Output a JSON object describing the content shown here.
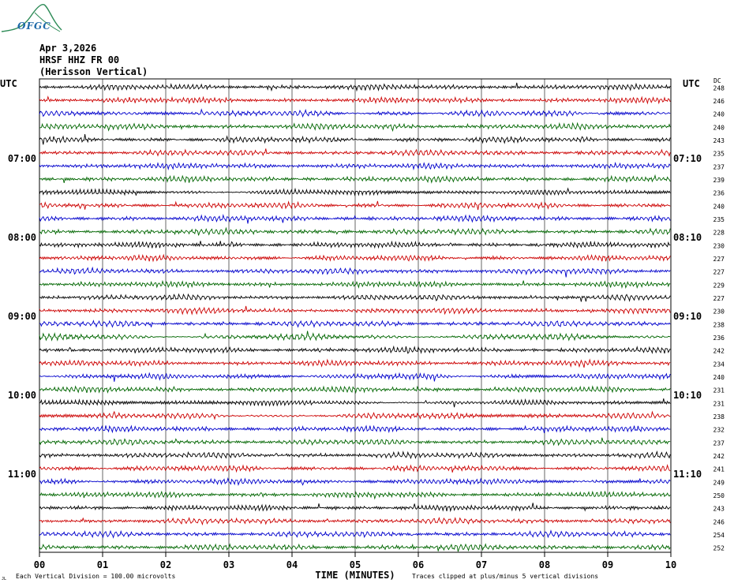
{
  "header": {
    "logo": "OFGC",
    "date": "Apr 3,2026",
    "station": "HRSF HHZ FR 00",
    "location": "(Herisson Vertical)"
  },
  "axes": {
    "left_title": "UTC",
    "right_title": "UTC",
    "right_corner": "DC",
    "xlabel": "TIME (MINUTES)",
    "x_ticks": [
      "00",
      "01",
      "02",
      "03",
      "04",
      "05",
      "06",
      "07",
      "08",
      "09",
      "10"
    ]
  },
  "footer": {
    "left_mark": "JL",
    "scale_note": "Each Vertical Division =  100.00 microvolts",
    "clip_note": "Traces clipped at plus/minus 5 vertical divisions"
  },
  "colors": {
    "trace_cycle": [
      "#000000",
      "#cc0000",
      "#0000cc",
      "#006600"
    ],
    "grid": "#000000",
    "logo": "#2e8b57"
  },
  "chart_data": {
    "type": "line",
    "title": "",
    "xlabel": "TIME (MINUTES)",
    "ylabel": "",
    "xlim": [
      0,
      10
    ],
    "rows_count": 36,
    "left_hour_labels": [
      {
        "row": 6,
        "label": "07:00"
      },
      {
        "row": 12,
        "label": "08:00"
      },
      {
        "row": 18,
        "label": "09:00"
      },
      {
        "row": 24,
        "label": "10:00"
      },
      {
        "row": 30,
        "label": "11:00"
      }
    ],
    "right_hour_labels": [
      {
        "row": 6,
        "label": "07:10"
      },
      {
        "row": 12,
        "label": "08:10"
      },
      {
        "row": 18,
        "label": "09:10"
      },
      {
        "row": 24,
        "label": "10:10"
      },
      {
        "row": 30,
        "label": "11:10"
      }
    ],
    "dc_offsets": [
      248,
      246,
      240,
      240,
      243,
      235,
      237,
      239,
      236,
      240,
      235,
      228,
      230,
      227,
      227,
      229,
      227,
      230,
      238,
      236,
      242,
      234,
      240,
      231,
      231,
      238,
      232,
      237,
      242,
      241,
      249,
      250,
      243,
      246,
      254,
      252
    ]
  }
}
